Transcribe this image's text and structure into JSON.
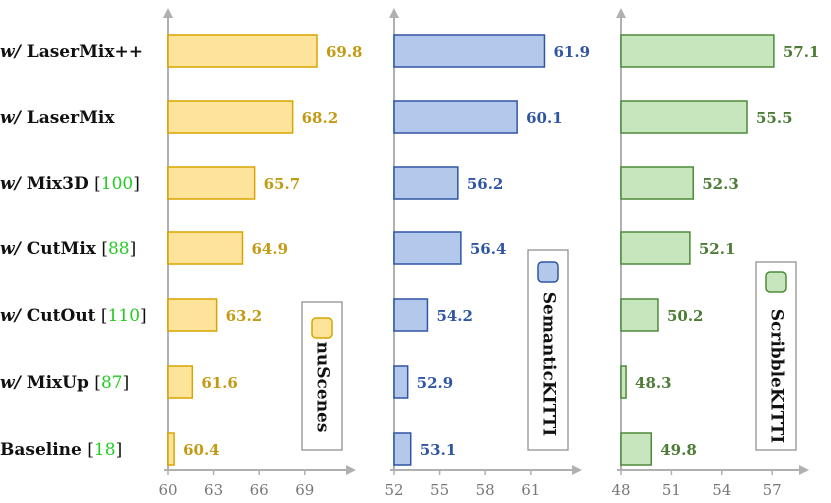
{
  "chart_data": {
    "type": "bar",
    "orientation": "horizontal",
    "categories": [
      {
        "prefix": "w/",
        "name": "LaserMix++",
        "ref": ""
      },
      {
        "prefix": "w/",
        "name": "LaserMix",
        "ref": ""
      },
      {
        "prefix": "w/",
        "name": "Mix3D",
        "ref": "100"
      },
      {
        "prefix": "w/",
        "name": "CutMix",
        "ref": "88"
      },
      {
        "prefix": "w/",
        "name": "CutOut",
        "ref": "110"
      },
      {
        "prefix": "w/",
        "name": "MixUp",
        "ref": "87"
      },
      {
        "prefix": "",
        "name": "Baseline",
        "ref": "18"
      }
    ],
    "panels": [
      {
        "name": "nuScenes",
        "values": [
          69.8,
          68.2,
          65.7,
          64.9,
          63.2,
          61.6,
          60.4
        ],
        "xlim": [
          60,
          71
        ],
        "ticks": [
          60,
          63,
          66,
          69
        ],
        "fill_color": "#fde49a",
        "edge_color": "#d9a400",
        "label_color": "#c39a12"
      },
      {
        "name": "SemanticKITTI",
        "values": [
          61.9,
          60.1,
          56.2,
          56.4,
          54.2,
          52.9,
          53.1
        ],
        "xlim": [
          52,
          63
        ],
        "ticks": [
          52,
          55,
          58,
          61
        ],
        "fill_color": "#b3c8ea",
        "edge_color": "#2f55a4",
        "label_color": "#2f55a4"
      },
      {
        "name": "ScribbleKITTI",
        "values": [
          57.1,
          55.5,
          52.3,
          52.1,
          50.2,
          48.3,
          49.8
        ],
        "xlim": [
          48,
          58
        ],
        "ticks": [
          48,
          51,
          54,
          57
        ],
        "fill_color": "#c8e6be",
        "edge_color": "#4c8a3a",
        "label_color": "#4c7c36"
      }
    ]
  }
}
